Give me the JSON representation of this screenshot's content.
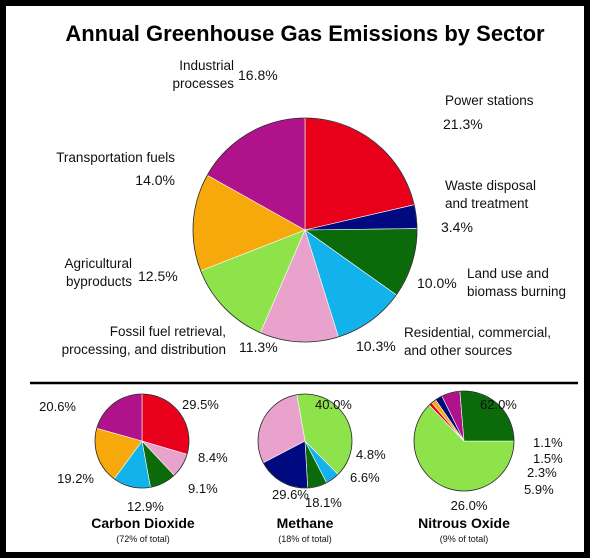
{
  "chart_data": [
    {
      "type": "pie",
      "title": "Annual Greenhouse Gas Emissions by Sector",
      "slices": [
        {
          "label": [
            "Power stations"
          ],
          "value": 21.3,
          "display": "21.3%",
          "color": "#e8001a"
        },
        {
          "label": [
            "Waste disposal",
            "and treatment"
          ],
          "value": 3.4,
          "display": "3.4%",
          "color": "#000a80"
        },
        {
          "label": [
            "Land use and",
            "biomass burning"
          ],
          "value": 10.0,
          "display": "10.0%",
          "color": "#0b6b0b"
        },
        {
          "label": [
            "Residential, commercial,",
            "and other sources"
          ],
          "value": 10.3,
          "display": "10.3%",
          "color": "#12b2ec"
        },
        {
          "label": [
            "Fossil fuel retrieval,",
            "processing, and distribution"
          ],
          "value": 11.3,
          "display": "11.3%",
          "color": "#e8a2cc"
        },
        {
          "label": [
            "Agricultural",
            "byproducts"
          ],
          "value": 12.5,
          "display": "12.5%",
          "color": "#8ee34a"
        },
        {
          "label": [
            "Transportation fuels"
          ],
          "value": 14.0,
          "display": "14.0%",
          "color": "#f7a90c"
        },
        {
          "label": [
            "Industrial",
            "processes"
          ],
          "value": 16.8,
          "display": "16.8%",
          "color": "#b0128c"
        }
      ]
    },
    {
      "type": "pie",
      "title": "Carbon Dioxide",
      "subtitle": "(72% of total)",
      "slices": [
        {
          "value": 29.5,
          "display": "29.5%",
          "color": "#e8001a"
        },
        {
          "value": 8.4,
          "display": "8.4%",
          "color": "#e8a2cc"
        },
        {
          "value": 9.1,
          "display": "9.1%",
          "color": "#0b6b0b"
        },
        {
          "value": 12.9,
          "display": "12.9%",
          "color": "#12b2ec"
        },
        {
          "value": 19.2,
          "display": "19.2%",
          "color": "#f7a90c"
        },
        {
          "value": 20.6,
          "display": "20.6%",
          "color": "#b0128c"
        }
      ]
    },
    {
      "type": "pie",
      "title": "Methane",
      "subtitle": "(18% of total)",
      "slices": [
        {
          "value": 40.0,
          "display": "40.0%",
          "color": "#8ee34a"
        },
        {
          "value": 4.8,
          "display": "4.8%",
          "color": "#12b2ec"
        },
        {
          "value": 6.6,
          "display": "6.6%",
          "color": "#0b6b0b"
        },
        {
          "value": 18.1,
          "display": "18.1%",
          "color": "#000a80"
        },
        {
          "value": 29.6,
          "display": "29.6%",
          "color": "#e8a2cc"
        }
      ]
    },
    {
      "type": "pie",
      "title": "Nitrous Oxide",
      "subtitle": "(9% of total)",
      "slices": [
        {
          "value": 62.0,
          "display": "62.0%",
          "color": "#8ee34a"
        },
        {
          "value": 1.1,
          "display": "1.1%",
          "color": "#e8001a"
        },
        {
          "value": 1.5,
          "display": "1.5%",
          "color": "#f7a90c"
        },
        {
          "value": 2.3,
          "display": "2.3%",
          "color": "#000a80"
        },
        {
          "value": 5.9,
          "display": "5.9%",
          "color": "#b0128c"
        },
        {
          "value": 26.0,
          "display": "26.0%",
          "color": "#0b6b0b"
        }
      ]
    }
  ]
}
